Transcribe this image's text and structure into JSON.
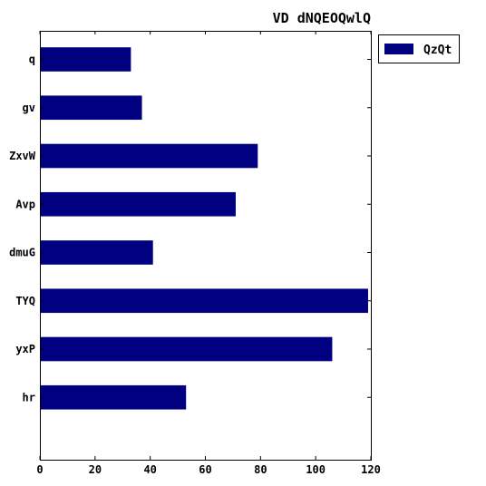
{
  "chart_data": {
    "type": "bar",
    "orientation": "horizontal",
    "title": "VD dNQEOQwlQ",
    "xlabel": "",
    "ylabel": "",
    "categories": [
      "q",
      "gv",
      "ZxvW",
      "Avp",
      "dmuG",
      "TYQ",
      "yxP",
      "hr"
    ],
    "series": [
      {
        "name": "QzQt",
        "values": [
          33,
          37,
          79,
          71,
          41,
          119,
          106,
          53
        ],
        "color": "#000080"
      }
    ],
    "xlim": [
      0,
      120
    ],
    "xticks": [
      0,
      20,
      40,
      60,
      80,
      100,
      120
    ],
    "grid": false,
    "legend": "top-right, outside plot"
  }
}
